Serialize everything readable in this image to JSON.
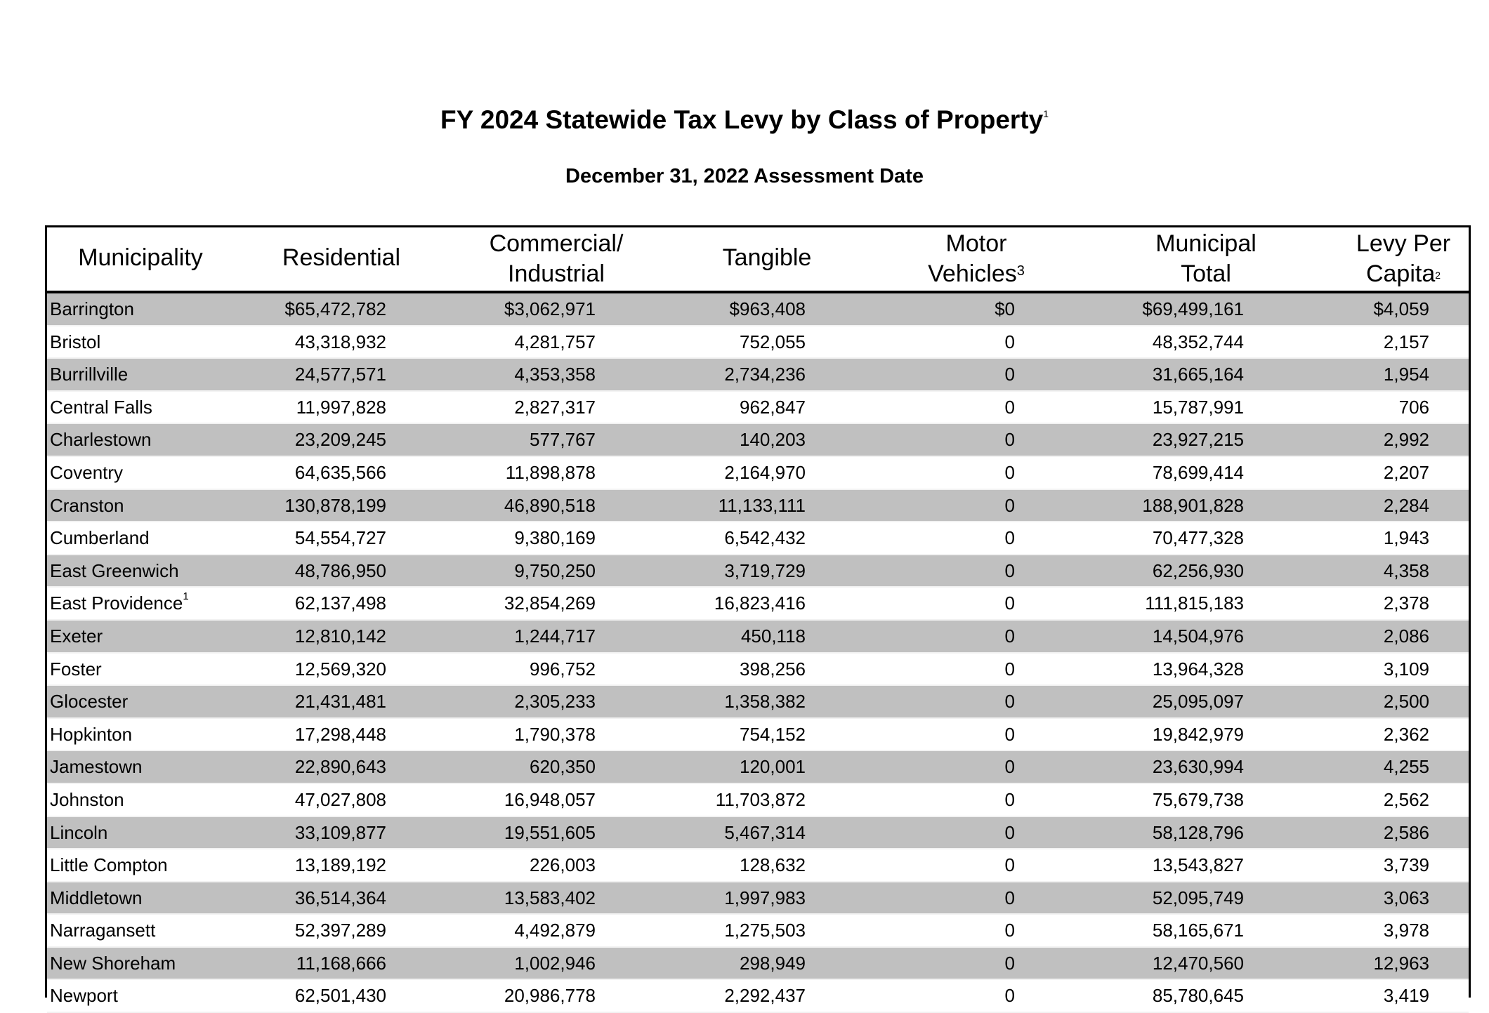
{
  "title": {
    "text": "FY 2024 Statewide Tax Levy by Class of Property",
    "footnote": "1"
  },
  "subtitle": "December 31, 2022 Assessment Date",
  "columns": [
    {
      "line1": "Municipality",
      "line2": "",
      "footnote": ""
    },
    {
      "line1": "Residential",
      "line2": "",
      "footnote": ""
    },
    {
      "line1": "Commercial/",
      "line2": "Industrial",
      "footnote": ""
    },
    {
      "line1": "Tangible",
      "line2": "",
      "footnote": ""
    },
    {
      "line1": "Motor",
      "line2": "Vehicles",
      "footnote": "3"
    },
    {
      "line1": "Municipal",
      "line2": "Total",
      "footnote": ""
    },
    {
      "line1": "Levy Per",
      "line2": "Capita",
      "footnote": "2"
    }
  ],
  "rows": [
    {
      "municipality": "Barrington",
      "footnote": "",
      "residential": "$65,472,782",
      "commercial": "$3,062,971",
      "tangible": "$963,408",
      "motor": "$0",
      "total": "$69,499,161",
      "per_capita": "$4,059"
    },
    {
      "municipality": "Bristol",
      "footnote": "",
      "residential": "43,318,932",
      "commercial": "4,281,757",
      "tangible": "752,055",
      "motor": "0",
      "total": "48,352,744",
      "per_capita": "2,157"
    },
    {
      "municipality": "Burrillville",
      "footnote": "",
      "residential": "24,577,571",
      "commercial": "4,353,358",
      "tangible": "2,734,236",
      "motor": "0",
      "total": "31,665,164",
      "per_capita": "1,954"
    },
    {
      "municipality": "Central Falls",
      "footnote": "",
      "residential": "11,997,828",
      "commercial": "2,827,317",
      "tangible": "962,847",
      "motor": "0",
      "total": "15,787,991",
      "per_capita": "706"
    },
    {
      "municipality": "Charlestown",
      "footnote": "",
      "residential": "23,209,245",
      "commercial": "577,767",
      "tangible": "140,203",
      "motor": "0",
      "total": "23,927,215",
      "per_capita": "2,992"
    },
    {
      "municipality": "Coventry",
      "footnote": "",
      "residential": "64,635,566",
      "commercial": "11,898,878",
      "tangible": "2,164,970",
      "motor": "0",
      "total": "78,699,414",
      "per_capita": "2,207"
    },
    {
      "municipality": "Cranston",
      "footnote": "",
      "residential": "130,878,199",
      "commercial": "46,890,518",
      "tangible": "11,133,111",
      "motor": "0",
      "total": "188,901,828",
      "per_capita": "2,284"
    },
    {
      "municipality": "Cumberland",
      "footnote": "",
      "residential": "54,554,727",
      "commercial": "9,380,169",
      "tangible": "6,542,432",
      "motor": "0",
      "total": "70,477,328",
      "per_capita": "1,943"
    },
    {
      "municipality": "East Greenwich",
      "footnote": "",
      "residential": "48,786,950",
      "commercial": "9,750,250",
      "tangible": "3,719,729",
      "motor": "0",
      "total": "62,256,930",
      "per_capita": "4,358"
    },
    {
      "municipality": "East Providence",
      "footnote": "1",
      "residential": "62,137,498",
      "commercial": "32,854,269",
      "tangible": "16,823,416",
      "motor": "0",
      "total": "111,815,183",
      "per_capita": "2,378"
    },
    {
      "municipality": "Exeter",
      "footnote": "",
      "residential": "12,810,142",
      "commercial": "1,244,717",
      "tangible": "450,118",
      "motor": "0",
      "total": "14,504,976",
      "per_capita": "2,086"
    },
    {
      "municipality": "Foster",
      "footnote": "",
      "residential": "12,569,320",
      "commercial": "996,752",
      "tangible": "398,256",
      "motor": "0",
      "total": "13,964,328",
      "per_capita": "3,109"
    },
    {
      "municipality": "Glocester",
      "footnote": "",
      "residential": "21,431,481",
      "commercial": "2,305,233",
      "tangible": "1,358,382",
      "motor": "0",
      "total": "25,095,097",
      "per_capita": "2,500"
    },
    {
      "municipality": "Hopkinton",
      "footnote": "",
      "residential": "17,298,448",
      "commercial": "1,790,378",
      "tangible": "754,152",
      "motor": "0",
      "total": "19,842,979",
      "per_capita": "2,362"
    },
    {
      "municipality": "Jamestown",
      "footnote": "",
      "residential": "22,890,643",
      "commercial": "620,350",
      "tangible": "120,001",
      "motor": "0",
      "total": "23,630,994",
      "per_capita": "4,255"
    },
    {
      "municipality": "Johnston",
      "footnote": "",
      "residential": "47,027,808",
      "commercial": "16,948,057",
      "tangible": "11,703,872",
      "motor": "0",
      "total": "75,679,738",
      "per_capita": "2,562"
    },
    {
      "municipality": "Lincoln",
      "footnote": "",
      "residential": "33,109,877",
      "commercial": "19,551,605",
      "tangible": "5,467,314",
      "motor": "0",
      "total": "58,128,796",
      "per_capita": "2,586"
    },
    {
      "municipality": "Little Compton",
      "footnote": "",
      "residential": "13,189,192",
      "commercial": "226,003",
      "tangible": "128,632",
      "motor": "0",
      "total": "13,543,827",
      "per_capita": "3,739"
    },
    {
      "municipality": "Middletown",
      "footnote": "",
      "residential": "36,514,364",
      "commercial": "13,583,402",
      "tangible": "1,997,983",
      "motor": "0",
      "total": "52,095,749",
      "per_capita": "3,063"
    },
    {
      "municipality": "Narragansett",
      "footnote": "",
      "residential": "52,397,289",
      "commercial": "4,492,879",
      "tangible": "1,275,503",
      "motor": "0",
      "total": "58,165,671",
      "per_capita": "3,978"
    },
    {
      "municipality": "New Shoreham",
      "footnote": "",
      "residential": "11,168,666",
      "commercial": "1,002,946",
      "tangible": "298,949",
      "motor": "0",
      "total": "12,470,560",
      "per_capita": "12,963"
    },
    {
      "municipality": "Newport",
      "footnote": "",
      "residential": "62,501,430",
      "commercial": "20,986,778",
      "tangible": "2,292,437",
      "motor": "0",
      "total": "85,780,645",
      "per_capita": "3,419"
    }
  ],
  "colors": {
    "row_shade": "#c0c0c0",
    "border": "#000000"
  }
}
